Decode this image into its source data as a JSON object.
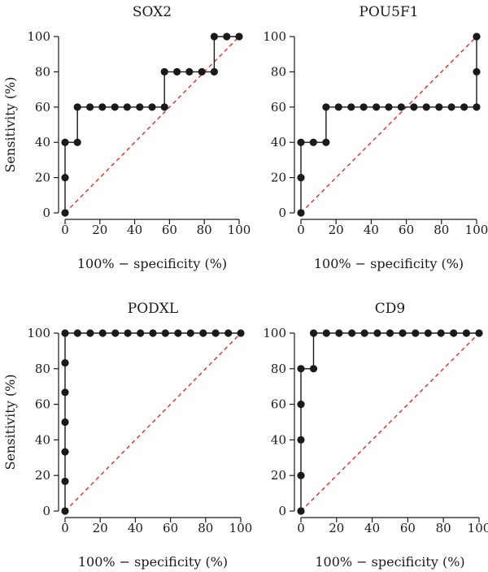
{
  "chart_data": [
    {
      "type": "line",
      "title": "SOX2",
      "xlabel": "100% − specificity (%)",
      "ylabel": "Sensitivity (%)",
      "xlim": [
        0,
        100
      ],
      "ylim": [
        0,
        100
      ],
      "xticks": [
        0,
        20,
        40,
        60,
        80,
        100
      ],
      "yticks": [
        0,
        20,
        40,
        60,
        80,
        100
      ],
      "reference_line": "dashed red diagonal",
      "points": [
        [
          0,
          0
        ],
        [
          0,
          20
        ],
        [
          0,
          40
        ],
        [
          7.1,
          40
        ],
        [
          7.1,
          60
        ],
        [
          14.3,
          60
        ],
        [
          21.4,
          60
        ],
        [
          28.6,
          60
        ],
        [
          35.7,
          60
        ],
        [
          42.9,
          60
        ],
        [
          50,
          60
        ],
        [
          57.1,
          60
        ],
        [
          57.1,
          80
        ],
        [
          64.3,
          80
        ],
        [
          71.4,
          80
        ],
        [
          78.6,
          80
        ],
        [
          85.7,
          80
        ],
        [
          85.7,
          100
        ],
        [
          92.9,
          100
        ],
        [
          100,
          100
        ]
      ]
    },
    {
      "type": "line",
      "title": "POU5F1",
      "xlabel": "100% − specificity (%)",
      "ylabel": "",
      "xlim": [
        0,
        100
      ],
      "ylim": [
        0,
        100
      ],
      "xticks": [
        0,
        20,
        40,
        60,
        80,
        100
      ],
      "yticks": [
        0,
        20,
        40,
        60,
        80,
        100
      ],
      "reference_line": "dashed red diagonal",
      "points": [
        [
          0,
          0
        ],
        [
          0,
          20
        ],
        [
          0,
          40
        ],
        [
          7.1,
          40
        ],
        [
          14.3,
          40
        ],
        [
          14.3,
          60
        ],
        [
          21.4,
          60
        ],
        [
          28.6,
          60
        ],
        [
          35.7,
          60
        ],
        [
          42.9,
          60
        ],
        [
          50,
          60
        ],
        [
          57.1,
          60
        ],
        [
          64.3,
          60
        ],
        [
          71.4,
          60
        ],
        [
          78.6,
          60
        ],
        [
          85.7,
          60
        ],
        [
          92.9,
          60
        ],
        [
          100,
          60
        ],
        [
          100,
          80
        ],
        [
          100,
          100
        ]
      ]
    },
    {
      "type": "line",
      "title": "PODXL",
      "xlabel": "100% − specificity (%)",
      "ylabel": "Sensitivity (%)",
      "xlim": [
        0,
        100
      ],
      "ylim": [
        0,
        100
      ],
      "xticks": [
        0,
        20,
        40,
        60,
        80,
        100
      ],
      "yticks": [
        0,
        20,
        40,
        60,
        80,
        100
      ],
      "reference_line": "dashed red diagonal",
      "points": [
        [
          0,
          0
        ],
        [
          0,
          16.7
        ],
        [
          0,
          33.3
        ],
        [
          0,
          50
        ],
        [
          0,
          66.7
        ],
        [
          0,
          83.3
        ],
        [
          0,
          100
        ],
        [
          7.1,
          100
        ],
        [
          14.3,
          100
        ],
        [
          21.4,
          100
        ],
        [
          28.6,
          100
        ],
        [
          35.7,
          100
        ],
        [
          42.9,
          100
        ],
        [
          50,
          100
        ],
        [
          57.1,
          100
        ],
        [
          64.3,
          100
        ],
        [
          71.4,
          100
        ],
        [
          78.6,
          100
        ],
        [
          85.7,
          100
        ],
        [
          92.9,
          100
        ],
        [
          100,
          100
        ]
      ]
    },
    {
      "type": "line",
      "title": "CD9",
      "xlabel": "100% − specificity (%)",
      "ylabel": "",
      "xlim": [
        0,
        100
      ],
      "ylim": [
        0,
        100
      ],
      "xticks": [
        0,
        20,
        40,
        60,
        80,
        100
      ],
      "yticks": [
        0,
        20,
        40,
        60,
        80,
        100
      ],
      "reference_line": "dashed red diagonal",
      "points": [
        [
          0,
          0
        ],
        [
          0,
          20
        ],
        [
          0,
          40
        ],
        [
          0,
          60
        ],
        [
          0,
          80
        ],
        [
          7.1,
          80
        ],
        [
          7.1,
          100
        ],
        [
          14.3,
          100
        ],
        [
          21.4,
          100
        ],
        [
          28.6,
          100
        ],
        [
          35.7,
          100
        ],
        [
          42.9,
          100
        ],
        [
          50,
          100
        ],
        [
          57.1,
          100
        ],
        [
          64.3,
          100
        ],
        [
          71.4,
          100
        ],
        [
          78.6,
          100
        ],
        [
          85.7,
          100
        ],
        [
          92.9,
          100
        ],
        [
          100,
          100
        ]
      ]
    }
  ]
}
